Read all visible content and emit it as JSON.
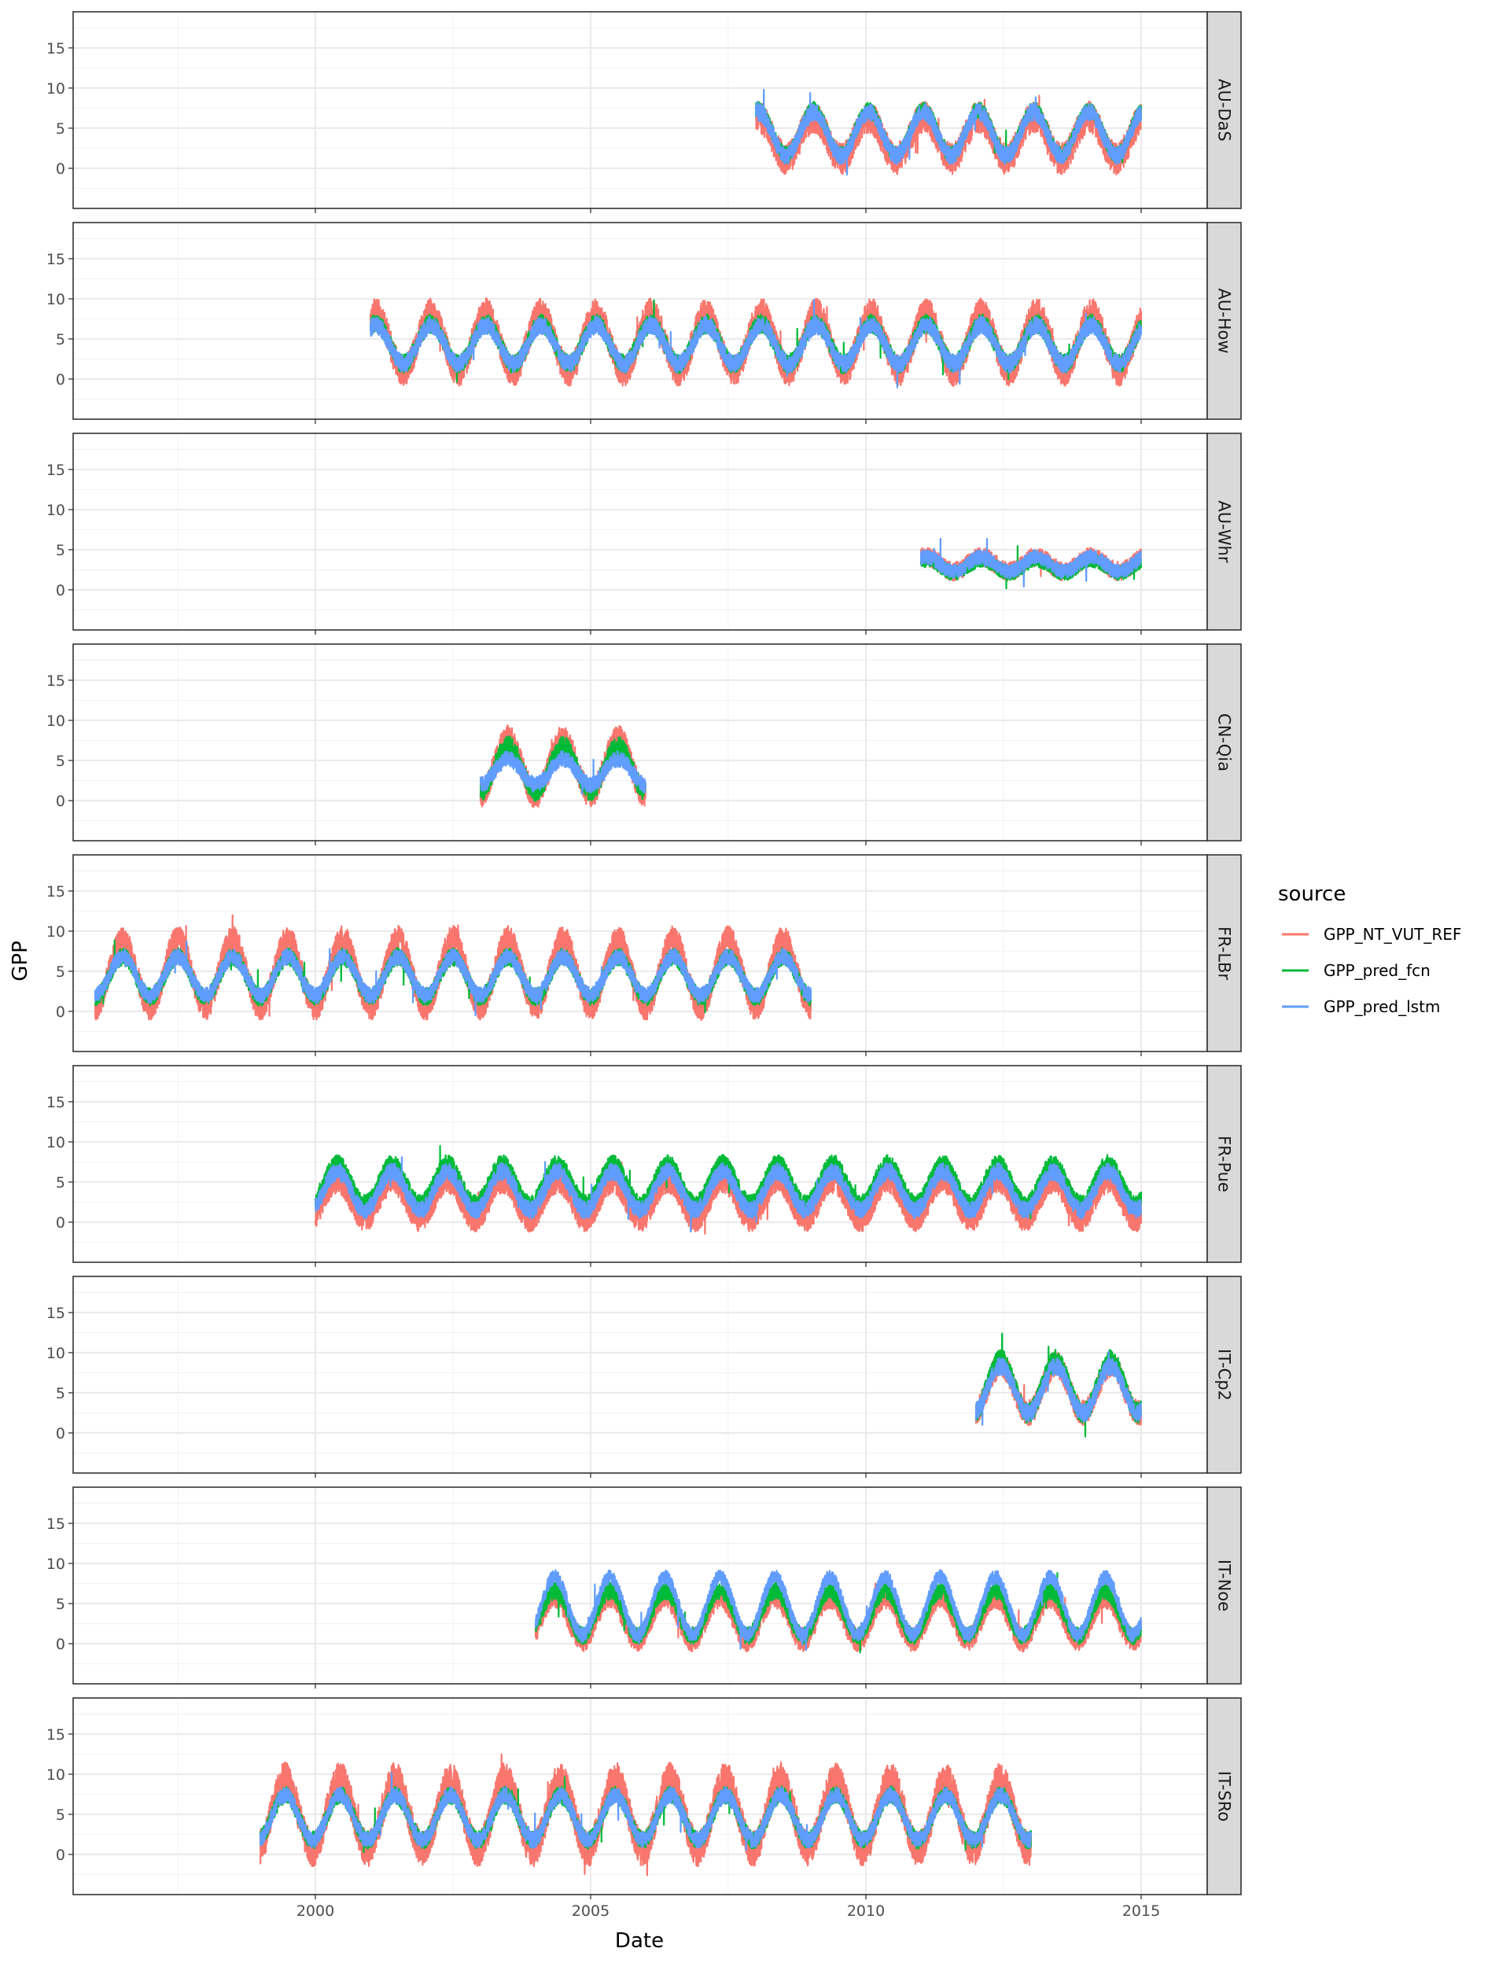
{
  "chart_data": {
    "type": "line",
    "xlabel": "Date",
    "ylabel": "GPP",
    "xlim": [
      1995.6,
      2016.2
    ],
    "ylim": [
      -5.0,
      19.5
    ],
    "x_ticks": [
      2000,
      2005,
      2010,
      2015
    ],
    "x_tick_labels": [
      "2000",
      "2005",
      "2010",
      "2015"
    ],
    "y_ticks": [
      0,
      5,
      10,
      15
    ],
    "y_tick_labels": [
      "0",
      "5",
      "10",
      "15"
    ],
    "grid": true,
    "legend": {
      "title": "source",
      "position": "right",
      "entries": [
        {
          "name": "GPP_NT_VUT_REF",
          "color": "#F8766D"
        },
        {
          "name": "GPP_pred_fcn",
          "color": "#00BA38"
        },
        {
          "name": "GPP_pred_lstm",
          "color": "#619CFF"
        }
      ]
    },
    "panels": [
      {
        "site": "AU-DaS",
        "start": 2008.0,
        "end": 2015.0,
        "series": [
          {
            "name": "GPP_NT_VUT_REF",
            "base": 3.8,
            "amp": 2.6,
            "peak_frac": 0.05,
            "noise": 2.0
          },
          {
            "name": "GPP_pred_fcn",
            "base": 4.5,
            "amp": 2.8,
            "peak_frac": 0.05,
            "noise": 1.0
          },
          {
            "name": "GPP_pred_lstm",
            "base": 4.3,
            "amp": 2.7,
            "peak_frac": 0.05,
            "noise": 1.1
          }
        ]
      },
      {
        "site": "AU-How",
        "start": 2001.0,
        "end": 2015.0,
        "series": [
          {
            "name": "GPP_NT_VUT_REF",
            "base": 4.6,
            "amp": 3.6,
            "peak_frac": 0.1,
            "noise": 1.9
          },
          {
            "name": "GPP_pred_fcn",
            "base": 4.4,
            "amp": 2.5,
            "peak_frac": 0.1,
            "noise": 1.2
          },
          {
            "name": "GPP_pred_lstm",
            "base": 4.3,
            "amp": 2.4,
            "peak_frac": 0.1,
            "noise": 1.1
          }
        ]
      },
      {
        "site": "AU-Whr",
        "start": 2011.0,
        "end": 2015.0,
        "series": [
          {
            "name": "GPP_NT_VUT_REF",
            "base": 3.2,
            "amp": 0.9,
            "peak_frac": 0.1,
            "noise": 1.2
          },
          {
            "name": "GPP_pred_fcn",
            "base": 2.9,
            "amp": 0.8,
            "peak_frac": 0.1,
            "noise": 0.9
          },
          {
            "name": "GPP_pred_lstm",
            "base": 3.2,
            "amp": 0.9,
            "peak_frac": 0.1,
            "noise": 0.9
          }
        ]
      },
      {
        "site": "CN-Qia",
        "start": 2003.0,
        "end": 2006.0,
        "series": [
          {
            "name": "GPP_NT_VUT_REF",
            "base": 4.2,
            "amp": 3.4,
            "peak_frac": 0.5,
            "noise": 1.8
          },
          {
            "name": "GPP_pred_fcn",
            "base": 4.0,
            "amp": 2.8,
            "peak_frac": 0.5,
            "noise": 1.3
          },
          {
            "name": "GPP_pred_lstm",
            "base": 3.6,
            "amp": 1.6,
            "peak_frac": 0.5,
            "noise": 1.0
          }
        ]
      },
      {
        "site": "FR-LBr",
        "start": 1996.0,
        "end": 2009.0,
        "series": [
          {
            "name": "GPP_NT_VUT_REF",
            "base": 4.8,
            "amp": 4.2,
            "peak_frac": 0.5,
            "noise": 1.7
          },
          {
            "name": "GPP_pred_fcn",
            "base": 4.3,
            "amp": 2.5,
            "peak_frac": 0.5,
            "noise": 1.1
          },
          {
            "name": "GPP_pred_lstm",
            "base": 4.4,
            "amp": 2.4,
            "peak_frac": 0.5,
            "noise": 1.0
          }
        ]
      },
      {
        "site": "FR-Pue",
        "start": 2000.0,
        "end": 2015.0,
        "series": [
          {
            "name": "GPP_NT_VUT_REF",
            "base": 2.8,
            "amp": 2.4,
            "peak_frac": 0.4,
            "noise": 1.6
          },
          {
            "name": "GPP_pred_fcn",
            "base": 4.8,
            "amp": 2.5,
            "peak_frac": 0.4,
            "noise": 1.1
          },
          {
            "name": "GPP_pred_lstm",
            "base": 3.9,
            "amp": 2.4,
            "peak_frac": 0.4,
            "noise": 1.1
          }
        ]
      },
      {
        "site": "IT-Cp2",
        "start": 2012.0,
        "end": 2015.0,
        "series": [
          {
            "name": "GPP_NT_VUT_REF",
            "base": 5.5,
            "amp": 3.0,
            "peak_frac": 0.45,
            "noise": 1.6
          },
          {
            "name": "GPP_pred_fcn",
            "base": 5.8,
            "amp": 3.3,
            "peak_frac": 0.45,
            "noise": 1.3
          },
          {
            "name": "GPP_pred_lstm",
            "base": 5.4,
            "amp": 2.9,
            "peak_frac": 0.45,
            "noise": 1.1
          }
        ]
      },
      {
        "site": "IT-Noe",
        "start": 2004.0,
        "end": 2015.0,
        "series": [
          {
            "name": "GPP_NT_VUT_REF",
            "base": 3.2,
            "amp": 2.7,
            "peak_frac": 0.35,
            "noise": 1.5
          },
          {
            "name": "GPP_pred_fcn",
            "base": 3.8,
            "amp": 2.8,
            "peak_frac": 0.35,
            "noise": 1.1
          },
          {
            "name": "GPP_pred_lstm",
            "base": 4.7,
            "amp": 3.6,
            "peak_frac": 0.35,
            "noise": 0.9
          }
        ]
      },
      {
        "site": "IT-SRo",
        "start": 1999.0,
        "end": 2013.0,
        "series": [
          {
            "name": "GPP_NT_VUT_REF",
            "base": 5.0,
            "amp": 4.3,
            "peak_frac": 0.45,
            "noise": 2.2
          },
          {
            "name": "GPP_pred_fcn",
            "base": 4.6,
            "amp": 2.8,
            "peak_frac": 0.45,
            "noise": 1.1
          },
          {
            "name": "GPP_pred_lstm",
            "base": 4.6,
            "amp": 2.8,
            "peak_frac": 0.45,
            "noise": 1.0
          }
        ]
      }
    ]
  }
}
